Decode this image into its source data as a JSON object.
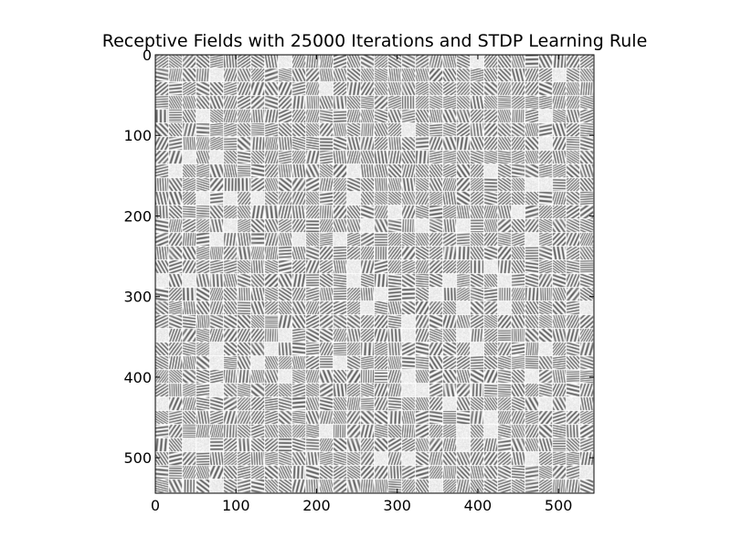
{
  "chart_data": {
    "type": "heatmap",
    "title": "Receptive Fields with 25000 Iterations and STDP Learning Rule",
    "xlabel": "",
    "ylabel": "",
    "xlim": [
      0,
      544
    ],
    "ylim": [
      544,
      0
    ],
    "x_ticks": [
      0,
      100,
      200,
      300,
      400,
      500
    ],
    "y_ticks": [
      0,
      100,
      200,
      300,
      400,
      500
    ],
    "x_tick_labels": [
      "0",
      "100",
      "200",
      "300",
      "400",
      "500"
    ],
    "y_tick_labels": [
      "0",
      "100",
      "200",
      "300",
      "400",
      "500"
    ],
    "grid": false,
    "legend": "none",
    "colormap": "gray",
    "tiles": {
      "rows": 32,
      "cols": 32,
      "tile_size": 16,
      "tile_spacing": 1,
      "content": "learned oriented edge/bar receptive-field patches (grayscale)"
    }
  },
  "colors": {
    "background": "#ffffff",
    "dark": "#111111",
    "light": "#f4f4f4",
    "separator": "#ffffff"
  }
}
